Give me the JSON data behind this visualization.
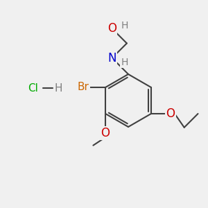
{
  "background_color": "#f0f0f0",
  "bond_color": "#404040",
  "bond_width": 1.5,
  "atom_colors": {
    "C": "#404040",
    "H": "#808080",
    "O": "#cc0000",
    "N": "#0000cc",
    "Br": "#cc6600",
    "Cl": "#00aa00"
  },
  "font_size": 11,
  "figsize": [
    3.0,
    3.0
  ],
  "dpi": 100
}
